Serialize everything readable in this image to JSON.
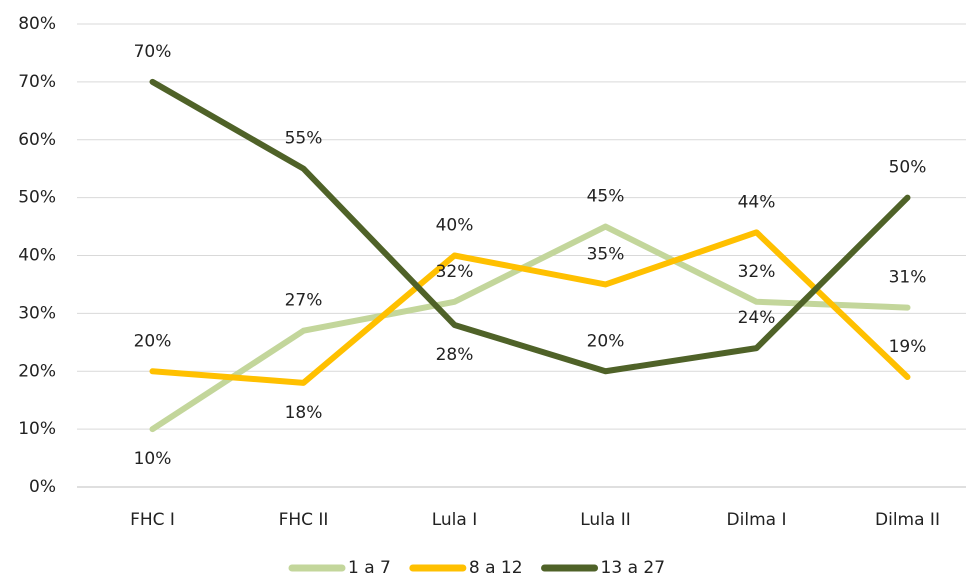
{
  "chart_data": {
    "type": "line",
    "categories": [
      "FHC I",
      "FHC II",
      "Lula I",
      "Lula II",
      "Dilma I",
      "Dilma II"
    ],
    "series": [
      {
        "name": "1 a 7",
        "color": "#c3d69b",
        "values": [
          10,
          27,
          32,
          45,
          32,
          31
        ],
        "value_labels": [
          "10%",
          "27%",
          "32%",
          "45%",
          "32%",
          "31%"
        ]
      },
      {
        "name": "8 a 12",
        "color": "#ffc000",
        "values": [
          20,
          18,
          40,
          35,
          44,
          19
        ],
        "value_labels": [
          "20%",
          "18%",
          "40%",
          "35%",
          "44%",
          "19%"
        ]
      },
      {
        "name": "13 a 27",
        "color": "#4f6228",
        "values": [
          70,
          55,
          28,
          20,
          24,
          50
        ],
        "value_labels": [
          "70%",
          "55%",
          "28%",
          "20%",
          "24%",
          "50%"
        ]
      }
    ],
    "ylim": [
      0,
      80
    ],
    "yticks": [
      {
        "value": 0,
        "label": "0%"
      },
      {
        "value": 10,
        "label": "10%"
      },
      {
        "value": 20,
        "label": "20%"
      },
      {
        "value": 30,
        "label": "30%"
      },
      {
        "value": 40,
        "label": "40%"
      },
      {
        "value": 50,
        "label": "50%"
      },
      {
        "value": 60,
        "label": "60%"
      },
      {
        "value": 70,
        "label": "70%"
      },
      {
        "value": 80,
        "label": "80%"
      }
    ],
    "grid": true,
    "legend": "bottom"
  }
}
